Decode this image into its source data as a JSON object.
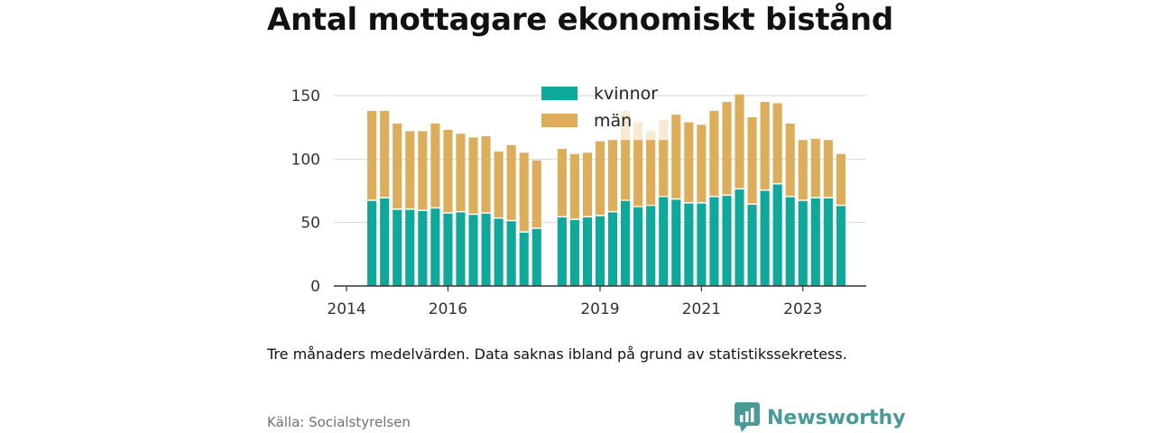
{
  "title": "Antal mottagare ekonomiskt bistånd",
  "note": "Tre månaders medelvärden. Data saknas ibland på grund av statistikssekretess.",
  "source": "Källa: Socialstyrelsen",
  "brand": {
    "name": "Newsworthy",
    "icon": "newsworthy-logo-icon",
    "color": "#4a9a97"
  },
  "chart_data": {
    "type": "bar",
    "stacked": true,
    "x_unit": "quarter",
    "ylim": [
      0,
      150
    ],
    "yticks": [
      0,
      50,
      100,
      150
    ],
    "xtick_labels": [
      "2014",
      "2016",
      "2019",
      "2021",
      "2023"
    ],
    "grid": "horizontal",
    "legend_position": "top-center",
    "colors": {
      "kvinnor": "#0fa89a",
      "män": "#dcae5c",
      "faded": "#f6ead4"
    },
    "categories": [
      "2014-Q3",
      "2014-Q4",
      "2015-Q1",
      "2015-Q2",
      "2015-Q3",
      "2015-Q4",
      "2016-Q1",
      "2016-Q2",
      "2016-Q3",
      "2016-Q4",
      "2017-Q1",
      "2017-Q2",
      "2017-Q3",
      "2017-Q4",
      "2018-Q1",
      "2018-Q2",
      "2018-Q3",
      "2018-Q4",
      "2019-Q1",
      "2019-Q2",
      "2019-Q3",
      "2019-Q4",
      "2020-Q1",
      "2020-Q2",
      "2020-Q3",
      "2020-Q4",
      "2021-Q1",
      "2021-Q2",
      "2021-Q3",
      "2021-Q4",
      "2022-Q1",
      "2022-Q2",
      "2022-Q3",
      "2022-Q4",
      "2023-Q1",
      "2023-Q2",
      "2023-Q3",
      "2023-Q4"
    ],
    "series": [
      {
        "name": "kvinnor",
        "values": [
          67,
          69,
          60,
          60,
          59,
          61,
          57,
          58,
          56,
          57,
          53,
          51,
          42,
          45,
          null,
          54,
          52,
          54,
          55,
          58,
          67,
          62,
          63,
          70,
          68,
          65,
          65,
          70,
          71,
          76,
          64,
          75,
          80,
          70,
          67,
          69,
          69,
          63
        ]
      },
      {
        "name": "män",
        "values": [
          71,
          69,
          68,
          62,
          63,
          67,
          66,
          62,
          61,
          61,
          53,
          60,
          63,
          54,
          null,
          54,
          52,
          51,
          59,
          57,
          48,
          53,
          52,
          45,
          67,
          64,
          62,
          68,
          74,
          75,
          69,
          70,
          64,
          58,
          48,
          47,
          46,
          41
        ]
      }
    ],
    "faded_totals": [
      {
        "category": "2019-Q3",
        "total": 138
      },
      {
        "category": "2019-Q4",
        "total": 129
      },
      {
        "category": "2020-Q1",
        "total": 122
      },
      {
        "category": "2020-Q2",
        "total": 131
      }
    ]
  }
}
